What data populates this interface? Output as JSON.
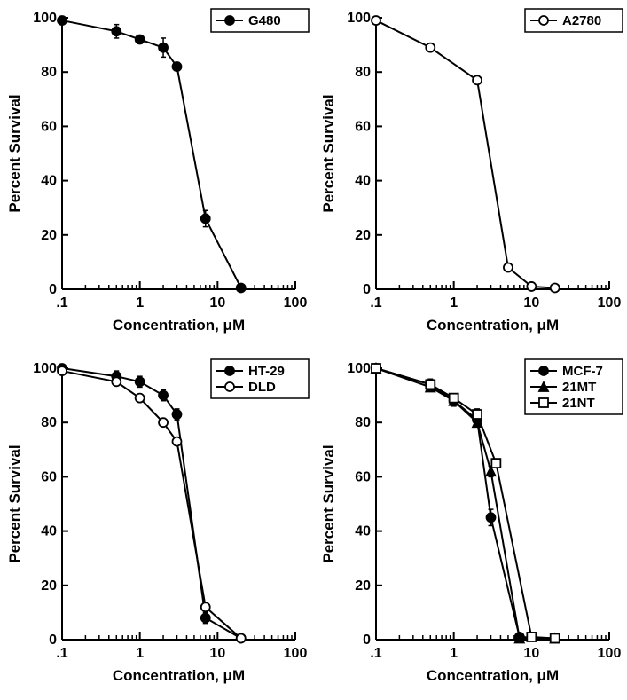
{
  "figure": {
    "background_color": "#ffffff",
    "line_color": "#000000",
    "text_color": "#000000",
    "font_family": "Helvetica, Arial, sans-serif",
    "axis_line_width": 2,
    "series_line_width": 2,
    "marker_size": 6,
    "error_cap": 3,
    "axis_title_fontsize": 17,
    "tick_label_fontsize": 16,
    "legend_fontsize": 15,
    "panels": [
      {
        "id": "topleft",
        "ylabel": "Percent Survival",
        "xlabel": "Concentration,  μM",
        "ylim": [
          0,
          100
        ],
        "ytick_step": 20,
        "xlog": true,
        "xlim": [
          0.1,
          100
        ],
        "xticks": [
          0.1,
          1,
          10,
          100
        ],
        "xtick_labels": [
          ".1",
          "1",
          "10",
          "100"
        ],
        "legend": {
          "pos": "top-right",
          "items": [
            {
              "label": "G480",
              "marker": "filled-circle"
            }
          ]
        },
        "series": [
          {
            "name": "G480",
            "marker": "filled-circle",
            "points": [
              {
                "x": 0.1,
                "y": 99,
                "err": 0
              },
              {
                "x": 0.5,
                "y": 95,
                "err": 2.5
              },
              {
                "x": 1,
                "y": 92,
                "err": 1.5
              },
              {
                "x": 2,
                "y": 89,
                "err": 3.5
              },
              {
                "x": 3,
                "y": 82,
                "err": 1.5
              },
              {
                "x": 7,
                "y": 26,
                "err": 3
              },
              {
                "x": 20,
                "y": 0.5,
                "err": 0
              }
            ]
          }
        ]
      },
      {
        "id": "topright",
        "ylabel": "Percent Survival",
        "xlabel": "Concentration,  μM",
        "ylim": [
          0,
          100
        ],
        "ytick_step": 20,
        "xlog": true,
        "xlim": [
          0.1,
          100
        ],
        "xticks": [
          0.1,
          1,
          10,
          100
        ],
        "xtick_labels": [
          ".1",
          "1",
          "10",
          "100"
        ],
        "legend": {
          "pos": "top-right",
          "items": [
            {
              "label": "A2780",
              "marker": "open-circle"
            }
          ]
        },
        "series": [
          {
            "name": "A2780",
            "marker": "open-circle",
            "points": [
              {
                "x": 0.1,
                "y": 99,
                "err": 0
              },
              {
                "x": 0.5,
                "y": 89,
                "err": 0
              },
              {
                "x": 2,
                "y": 77,
                "err": 0
              },
              {
                "x": 5,
                "y": 8,
                "err": 0
              },
              {
                "x": 10,
                "y": 1,
                "err": 0
              },
              {
                "x": 20,
                "y": 0.5,
                "err": 0
              }
            ]
          }
        ]
      },
      {
        "id": "botleft",
        "ylabel": "Percent Survival",
        "xlabel": "Concentration,  μM",
        "ylim": [
          0,
          100
        ],
        "ytick_step": 20,
        "xlog": true,
        "xlim": [
          0.1,
          100
        ],
        "xticks": [
          0.1,
          1,
          10,
          100
        ],
        "xtick_labels": [
          ".1",
          "1",
          "10",
          "100"
        ],
        "legend": {
          "pos": "top-right",
          "items": [
            {
              "label": "HT-29",
              "marker": "filled-circle"
            },
            {
              "label": "DLD",
              "marker": "open-circle"
            }
          ]
        },
        "series": [
          {
            "name": "HT-29",
            "marker": "filled-circle",
            "points": [
              {
                "x": 0.1,
                "y": 100,
                "err": 0
              },
              {
                "x": 0.5,
                "y": 97,
                "err": 2
              },
              {
                "x": 1,
                "y": 95,
                "err": 2
              },
              {
                "x": 2,
                "y": 90,
                "err": 2
              },
              {
                "x": 3,
                "y": 83,
                "err": 2
              },
              {
                "x": 7,
                "y": 8,
                "err": 2
              },
              {
                "x": 20,
                "y": 0.5,
                "err": 0
              }
            ]
          },
          {
            "name": "DLD",
            "marker": "open-circle",
            "points": [
              {
                "x": 0.1,
                "y": 99,
                "err": 0
              },
              {
                "x": 0.5,
                "y": 95,
                "err": 0
              },
              {
                "x": 1,
                "y": 89,
                "err": 0
              },
              {
                "x": 2,
                "y": 80,
                "err": 0
              },
              {
                "x": 3,
                "y": 73,
                "err": 0
              },
              {
                "x": 7,
                "y": 12,
                "err": 0
              },
              {
                "x": 20,
                "y": 0.5,
                "err": 0
              }
            ]
          }
        ]
      },
      {
        "id": "botright",
        "ylabel": "Percent Survival",
        "xlabel": "Concentration,  μM",
        "ylim": [
          0,
          100
        ],
        "ytick_step": 20,
        "xlog": true,
        "xlim": [
          0.1,
          100
        ],
        "xticks": [
          0.1,
          1,
          10,
          100
        ],
        "xtick_labels": [
          ".1",
          "1",
          "10",
          "100"
        ],
        "legend": {
          "pos": "top-right",
          "items": [
            {
              "label": "MCF-7",
              "marker": "filled-circle"
            },
            {
              "label": "21MT",
              "marker": "filled-triangle"
            },
            {
              "label": "21NT",
              "marker": "open-square"
            }
          ]
        },
        "series": [
          {
            "name": "MCF-7",
            "marker": "filled-circle",
            "points": [
              {
                "x": 0.1,
                "y": 100,
                "err": 0
              },
              {
                "x": 0.5,
                "y": 94,
                "err": 2
              },
              {
                "x": 1,
                "y": 88,
                "err": 2
              },
              {
                "x": 2,
                "y": 81,
                "err": 2
              },
              {
                "x": 3,
                "y": 45,
                "err": 3
              },
              {
                "x": 7,
                "y": 1,
                "err": 0
              },
              {
                "x": 20,
                "y": 0.5,
                "err": 0
              }
            ]
          },
          {
            "name": "21MT",
            "marker": "filled-triangle",
            "points": [
              {
                "x": 0.1,
                "y": 100,
                "err": 0
              },
              {
                "x": 0.5,
                "y": 93,
                "err": 0
              },
              {
                "x": 1,
                "y": 88,
                "err": 0
              },
              {
                "x": 2,
                "y": 80,
                "err": 0
              },
              {
                "x": 3,
                "y": 62,
                "err": 2
              },
              {
                "x": 7,
                "y": 0.5,
                "err": 0
              },
              {
                "x": 20,
                "y": 0.5,
                "err": 0
              }
            ]
          },
          {
            "name": "21NT",
            "marker": "open-square",
            "points": [
              {
                "x": 0.1,
                "y": 100,
                "err": 0
              },
              {
                "x": 0.5,
                "y": 94,
                "err": 0
              },
              {
                "x": 1,
                "y": 89,
                "err": 0
              },
              {
                "x": 2,
                "y": 83,
                "err": 2
              },
              {
                "x": 3.5,
                "y": 65,
                "err": 0
              },
              {
                "x": 10,
                "y": 1,
                "err": 0
              },
              {
                "x": 20,
                "y": 0.5,
                "err": 0
              }
            ]
          }
        ]
      }
    ]
  }
}
